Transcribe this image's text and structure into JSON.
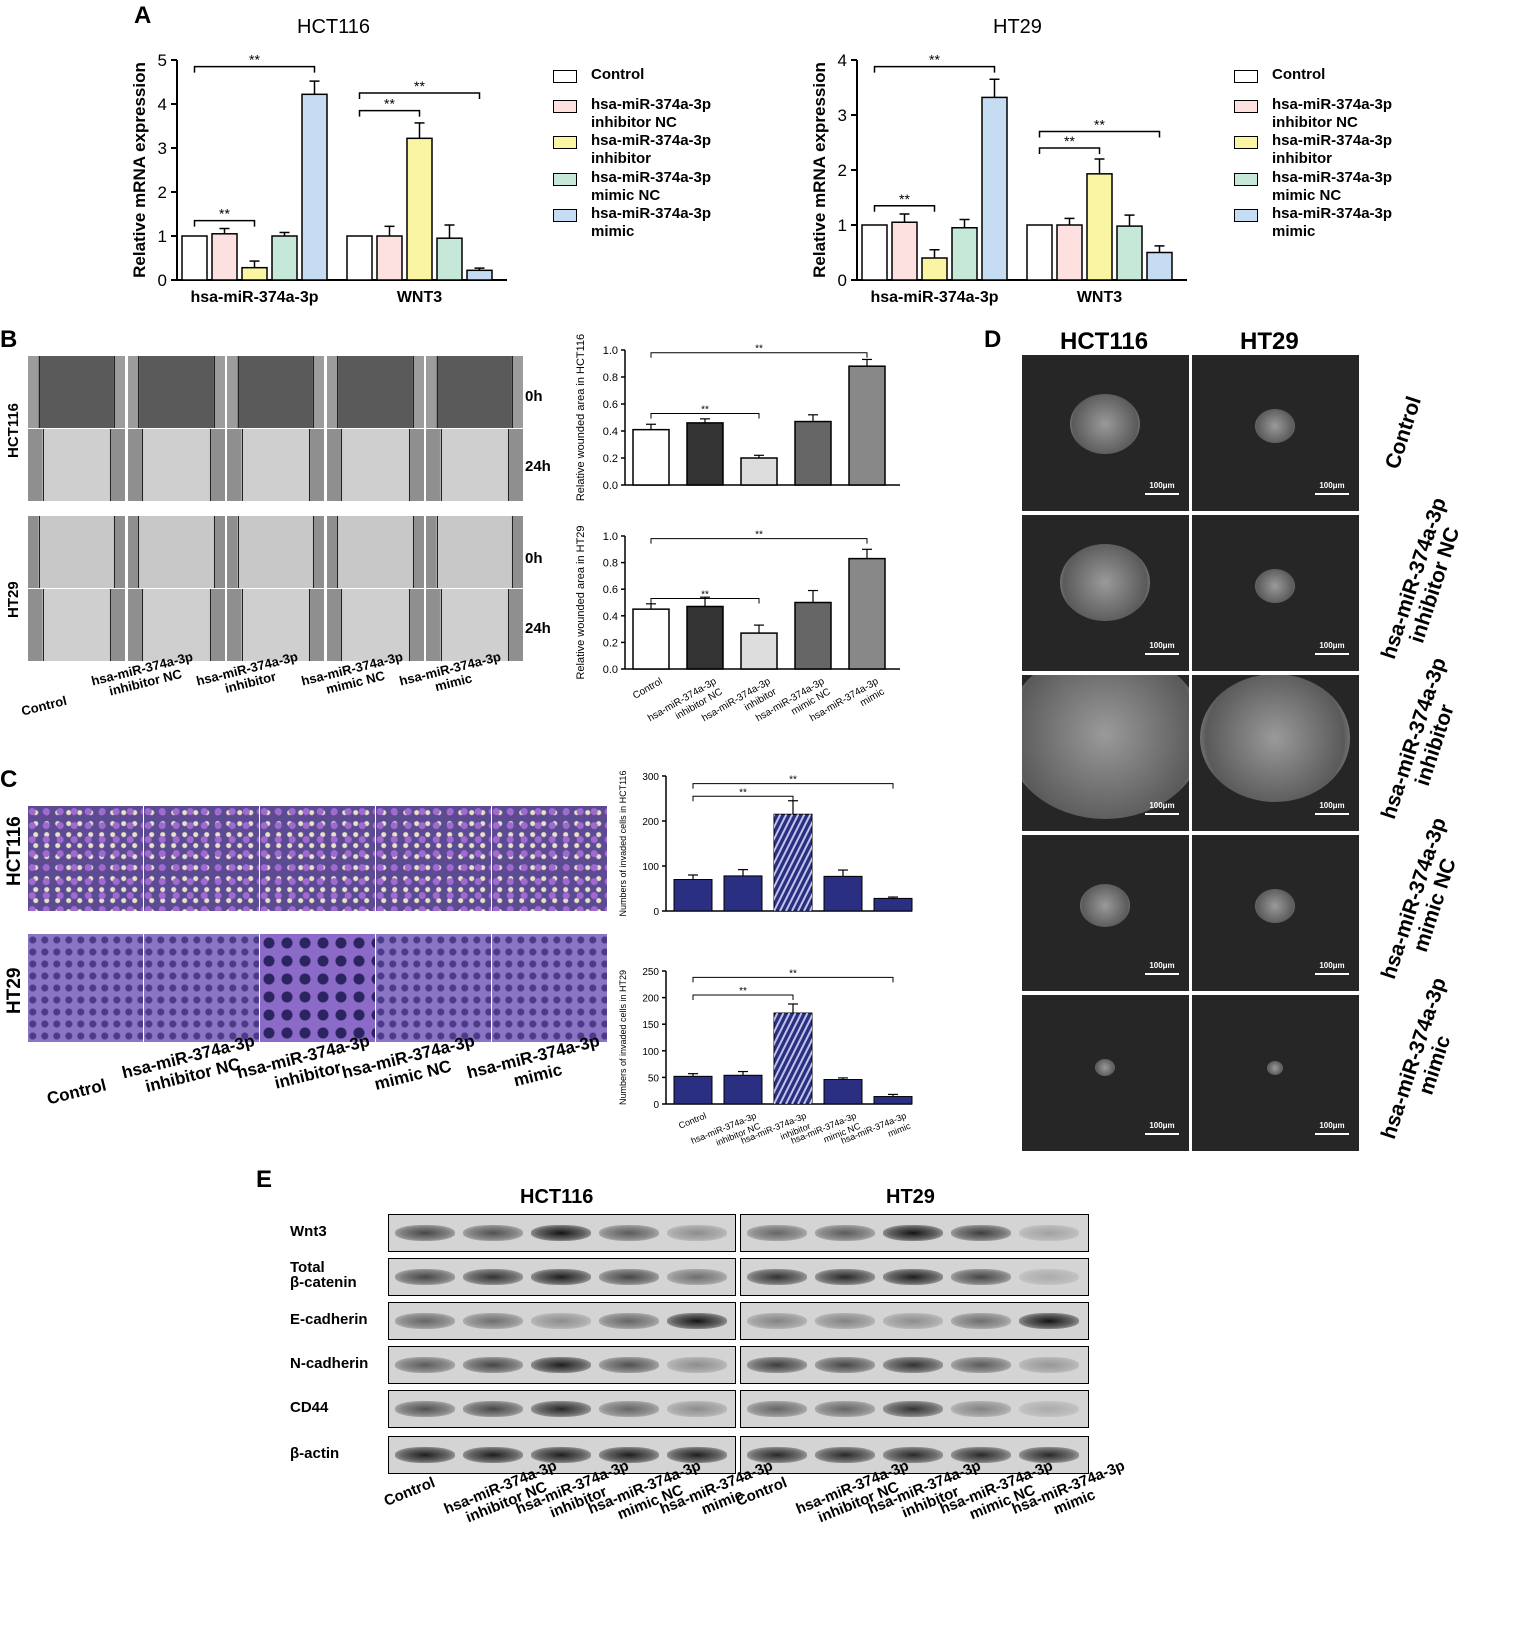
{
  "panel_labels": {
    "A": "A",
    "B": "B",
    "C": "C",
    "D": "D",
    "E": "E"
  },
  "groups": [
    "Control",
    "hsa-miR-374a-3p inhibitor NC",
    "hsa-miR-374a-3p inhibitor",
    "hsa-miR-374a-3p mimic NC",
    "hsa-miR-374a-3p mimic"
  ],
  "group_lines": [
    [
      "Control"
    ],
    [
      "hsa-miR-374a-3p",
      "inhibitor NC"
    ],
    [
      "hsa-miR-374a-3p",
      "inhibitor"
    ],
    [
      "hsa-miR-374a-3p",
      "mimic NC"
    ],
    [
      "hsa-miR-374a-3p",
      "mimic"
    ]
  ],
  "colors": {
    "control": "#ffffff",
    "inhibitor_nc": "#fde0e0",
    "inhibitor": "#f9f5a3",
    "mimic_nc": "#c5e8d8",
    "mimic": "#c6dcf3",
    "b_bars": [
      "#ffffff",
      "#333333",
      "#dddddd",
      "#666666",
      "#888888"
    ],
    "c_bars": "#2b2f82"
  },
  "significance": "**",
  "panelA": {
    "hct116": {
      "title": "HCT116",
      "ylabel": "Relative mRNA expression",
      "yticks": [
        "0",
        "1",
        "2",
        "3",
        "4",
        "5"
      ],
      "ymax": 5,
      "categories": [
        "hsa-miR-374a-3p",
        "WNT3"
      ],
      "values": [
        [
          1.0,
          1.05,
          0.28,
          1.0,
          4.22
        ],
        [
          1.0,
          1.0,
          3.22,
          0.95,
          0.22
        ]
      ],
      "errors": [
        [
          0,
          0.12,
          0.15,
          0.08,
          0.3
        ],
        [
          0,
          0.22,
          0.35,
          0.3,
          0.05
        ]
      ]
    },
    "ht29": {
      "title": "HT29",
      "ylabel": "Relative mRNA expression",
      "yticks": [
        "0",
        "1",
        "2",
        "3",
        "4"
      ],
      "ymax": 4,
      "categories": [
        "hsa-miR-374a-3p",
        "WNT3"
      ],
      "values": [
        [
          1.0,
          1.05,
          0.4,
          0.95,
          3.32
        ],
        [
          1.0,
          1.0,
          1.93,
          0.98,
          0.5
        ]
      ],
      "errors": [
        [
          0,
          0.15,
          0.15,
          0.15,
          0.33
        ],
        [
          0,
          0.12,
          0.27,
          0.2,
          0.12
        ]
      ]
    }
  },
  "panelB": {
    "rows": [
      "HCT116",
      "HT29"
    ],
    "times": [
      "0h",
      "24h"
    ],
    "charts": [
      {
        "ylabel": "Relative wounded area in HCT116",
        "yticks": [
          "0.0",
          "0.2",
          "0.4",
          "0.6",
          "0.8",
          "1.0"
        ],
        "ymax": 1.0,
        "values": [
          0.41,
          0.46,
          0.2,
          0.47,
          0.88
        ],
        "errors": [
          0.04,
          0.03,
          0.02,
          0.05,
          0.05
        ]
      },
      {
        "ylabel": "Relative wounded area in HT29",
        "yticks": [
          "0.0",
          "0.2",
          "0.4",
          "0.6",
          "0.8",
          "1.0"
        ],
        "ymax": 1.0,
        "values": [
          0.45,
          0.47,
          0.27,
          0.5,
          0.83
        ],
        "errors": [
          0.04,
          0.07,
          0.06,
          0.09,
          0.07
        ]
      }
    ]
  },
  "panelC": {
    "rows": [
      "HCT116",
      "HT29"
    ],
    "charts": [
      {
        "ylabel": "Numbers of invaded cells in HCT116",
        "yticks": [
          "0",
          "100",
          "200",
          "300"
        ],
        "ymax": 300,
        "values": [
          70,
          78,
          215,
          77,
          28
        ],
        "errors": [
          10,
          14,
          30,
          14,
          3
        ]
      },
      {
        "ylabel": "Numbers of invaded cells in HT29",
        "yticks": [
          "0",
          "50",
          "100",
          "150",
          "200",
          "250"
        ],
        "ymax": 250,
        "values": [
          52,
          54,
          171,
          46,
          14
        ],
        "errors": [
          5,
          7,
          17,
          3,
          4
        ]
      }
    ]
  },
  "panelD": {
    "columns": [
      "HCT116",
      "HT29"
    ],
    "row_labels": [
      [
        "Control"
      ],
      [
        "hsa-miR-374a-3p",
        "inhibitor NC"
      ],
      [
        "hsa-miR-374a-3p",
        "inhibitor"
      ],
      [
        "hsa-miR-374a-3p",
        "mimic NC"
      ],
      [
        "hsa-miR-374a-3p",
        "mimic"
      ]
    ],
    "scale_bar": "100μm"
  },
  "panelE": {
    "cell_lines": [
      "HCT116",
      "HT29"
    ],
    "proteins": [
      [
        "Wnt3"
      ],
      [
        "Total",
        "β-catenin"
      ],
      [
        "E-cadherin"
      ],
      [
        "N-cadherin"
      ],
      [
        "CD44"
      ],
      [
        "β-actin"
      ]
    ],
    "intensity": [
      [
        [
          0.7,
          0.65,
          0.95,
          0.6,
          0.35
        ],
        [
          0.55,
          0.6,
          0.95,
          0.75,
          0.25
        ]
      ],
      [
        [
          0.7,
          0.8,
          0.9,
          0.7,
          0.5
        ],
        [
          0.8,
          0.85,
          0.9,
          0.7,
          0.2
        ]
      ],
      [
        [
          0.55,
          0.5,
          0.35,
          0.55,
          0.95
        ],
        [
          0.4,
          0.4,
          0.35,
          0.5,
          0.95
        ]
      ],
      [
        [
          0.6,
          0.7,
          0.9,
          0.65,
          0.35
        ],
        [
          0.75,
          0.7,
          0.8,
          0.6,
          0.3
        ]
      ],
      [
        [
          0.65,
          0.7,
          0.85,
          0.55,
          0.35
        ],
        [
          0.55,
          0.55,
          0.8,
          0.4,
          0.2
        ]
      ],
      [
        [
          0.9,
          0.9,
          0.9,
          0.9,
          0.9
        ],
        [
          0.85,
          0.85,
          0.85,
          0.85,
          0.85
        ]
      ]
    ]
  }
}
